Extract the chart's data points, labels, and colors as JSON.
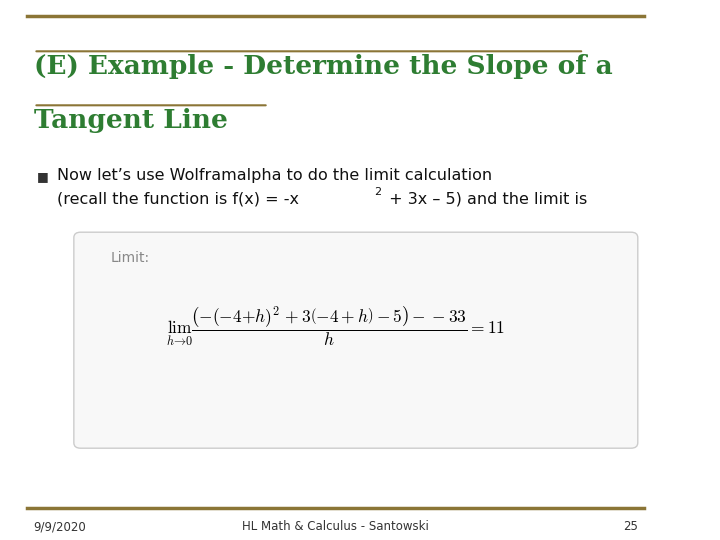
{
  "title_line1": "(E) Example - Determine the Slope of a",
  "title_line2": "Tangent Line",
  "title_color": "#2E7D32",
  "title_underline_color": "#8B7536",
  "bullet_color": "#1a1a1a",
  "bullet_square_color": "#333333",
  "body_text_line1": "Now let’s use Wolframalpha to do the limit calculation",
  "body_text_line2": "(recall the function is f(x) = -x² + 3x – 5) and the limit is",
  "box_bg_color": "#f0f0f0",
  "box_border_color": "#cccccc",
  "limit_label_color": "#888888",
  "formula_color": "#000000",
  "footer_date": "9/9/2020",
  "footer_center": "HL Math & Calculus - Santowski",
  "footer_page": "25",
  "bg_color": "#ffffff",
  "border_top_color": "#8B7536",
  "border_bottom_color": "#8B7536"
}
